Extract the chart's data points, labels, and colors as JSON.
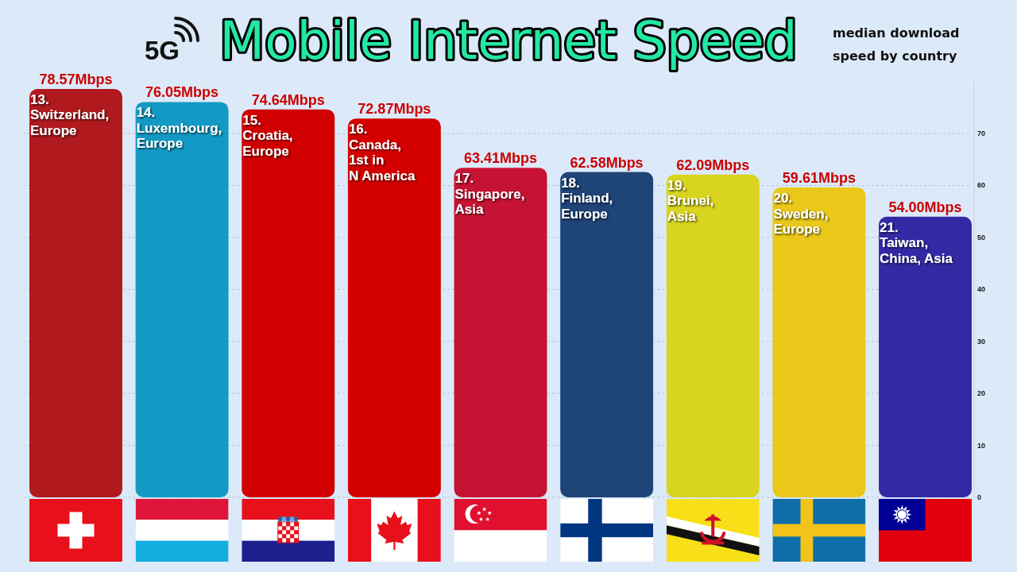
{
  "chart_data": {
    "type": "bar",
    "title": "Mobile Internet Speed",
    "subtitle": "median download\nspeed by country",
    "annotations": [
      "5G"
    ],
    "categories": [
      "13.\nSwitzerland,\nEurope",
      "14.\nLuxembourg,\nEurope",
      "15.\nCroatia,\nEurope",
      "16.\nCanada,\n1st in\nN America",
      "17.\nSingapore,\nAsia",
      "18.\nFinland,\nEurope",
      "19.\nBrunei,\nAsia",
      "20.\nSweden,\nEurope",
      "21.\nTaiwan,\nChina, Asia"
    ],
    "values": [
      78.57,
      76.05,
      74.64,
      72.87,
      63.41,
      62.58,
      62.09,
      59.61,
      54.0
    ],
    "value_labels": [
      "78.57Mbps",
      "76.05Mbps",
      "74.64Mbps",
      "72.87Mbps",
      "63.41Mbps",
      "62.58Mbps",
      "62.09Mbps",
      "59.61Mbps",
      "54.00Mbps"
    ],
    "colors": [
      "#b0191e",
      "#139ac4",
      "#d10000",
      "#d40000",
      "#c71333",
      "#1f4478",
      "#d9d420",
      "#e9c81a",
      "#3429a5"
    ],
    "ylim": [
      0,
      80
    ],
    "yticks": [
      0,
      10,
      20,
      30,
      40,
      50,
      60,
      70
    ],
    "grid": "y"
  }
}
